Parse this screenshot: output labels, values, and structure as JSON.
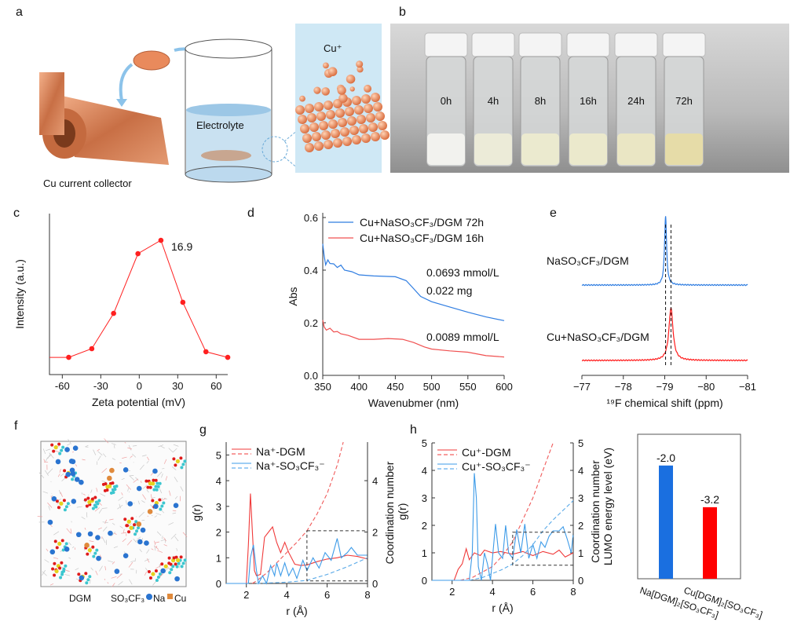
{
  "panel_letters": {
    "a": "a",
    "b": "b",
    "c": "c",
    "d": "d",
    "e": "e",
    "f": "f",
    "g": "g",
    "h": "h"
  },
  "panel_a": {
    "collector_label": "Cu current collector",
    "electrolyte_label": "Electrolyte",
    "ion_label": "Cu⁺",
    "colors": {
      "copper": "#d9865a",
      "electrolyte": "#bcd9ee",
      "crystal_bg": "#cfe8f5"
    }
  },
  "panel_b": {
    "vials": [
      "0h",
      "4h",
      "8h",
      "16h",
      "24h",
      "72h"
    ],
    "vial_liquid_colors": [
      "#f2f2ee",
      "#ecebd8",
      "#ebeacf",
      "#ebe9cc",
      "#eae6c4",
      "#e6dca8"
    ]
  },
  "panel_f": {
    "legend": {
      "dgm": "DGM",
      "anion": "SO₃CF₃",
      "na": "Na",
      "cu": "Cu"
    },
    "colors": {
      "na": "#2a74d0",
      "cu": "#e08a3c",
      "s": "#e6d21e",
      "o": "#e01b1b",
      "f": "#3cc6cf"
    }
  },
  "chart_data": [
    {
      "id": "c",
      "type": "line",
      "xlabel": "Zeta potential (mV)",
      "ylabel": "Intensity (a.u.)",
      "xlim": [
        -70,
        69
      ],
      "ylim": [
        0,
        1
      ],
      "xticks": [
        "-60",
        "-30",
        "0",
        "30",
        "60"
      ],
      "x": [
        -70,
        -55,
        -37,
        -20,
        -1,
        16.9,
        34,
        52,
        69
      ],
      "y": [
        0.107,
        0.107,
        0.161,
        0.38,
        0.751,
        0.834,
        0.449,
        0.142,
        0.107
      ],
      "color": "#ff2020",
      "annotation": "16.9",
      "grid": false
    },
    {
      "id": "d",
      "type": "line",
      "xlabel": "Wavenubmer (nm)",
      "ylabel": "Abs",
      "xlim": [
        350,
        600
      ],
      "ylim": [
        0,
        0.6
      ],
      "xticks": [
        "350",
        "400",
        "450",
        "500",
        "550",
        "600"
      ],
      "yticks": [
        "0.0",
        "0.2",
        "0.4",
        "0.6"
      ],
      "legend_position": "top-right",
      "series": [
        {
          "name": "Cu+NaSO₃CF₃/DGM 72h",
          "color": "#2f7de1",
          "x": [
            350,
            352,
            354,
            357,
            360,
            365,
            370,
            375,
            380,
            390,
            400,
            420,
            450,
            465,
            475,
            485,
            500,
            525,
            550,
            575,
            600
          ],
          "y": [
            0.5,
            0.45,
            0.42,
            0.435,
            0.425,
            0.42,
            0.41,
            0.415,
            0.4,
            0.39,
            0.382,
            0.378,
            0.375,
            0.36,
            0.33,
            0.3,
            0.28,
            0.26,
            0.24,
            0.222,
            0.208
          ]
        },
        {
          "name": "Cu+NaSO₃CF₃/DGM 16h",
          "color": "#f05050",
          "x": [
            350,
            352,
            355,
            360,
            365,
            370,
            375,
            385,
            400,
            420,
            440,
            460,
            475,
            490,
            500,
            525,
            550,
            575,
            600
          ],
          "y": [
            0.21,
            0.18,
            0.172,
            0.175,
            0.165,
            0.163,
            0.158,
            0.148,
            0.137,
            0.137,
            0.14,
            0.137,
            0.125,
            0.108,
            0.1,
            0.093,
            0.088,
            0.075,
            0.07
          ]
        }
      ],
      "annotations": [
        "0.0693 mmol/L",
        "0.022 mg",
        "0.0089 mmol/L"
      ],
      "grid": false
    },
    {
      "id": "e",
      "type": "line",
      "xlabel": "¹⁹F chemical shift (ppm)",
      "xlim": [
        -77,
        -81
      ],
      "xticks": [
        "−77",
        "−78",
        "−79",
        "−80",
        "−81"
      ],
      "stacked": true,
      "series": [
        {
          "name": "NaSO₃CF₃/DGM",
          "color": "#2f7de1",
          "peak_ppm": -79.02
        },
        {
          "name": "Cu+NaSO₃CF₃/DGM",
          "color": "#ff1a1a",
          "peak_ppm": -79.15
        }
      ],
      "reference_lines_ppm": [
        -79.02,
        -79.15
      ],
      "grid": false
    },
    {
      "id": "g",
      "type": "line",
      "xlabel": "r (Å)",
      "ylabel": "g(r)",
      "ylabel_right": "Coordination number",
      "xlim": [
        1,
        8
      ],
      "ylim": [
        0,
        5.5
      ],
      "xticks": [
        "2",
        "4",
        "6",
        "8"
      ],
      "yticks": [
        "0",
        "1",
        "2",
        "3",
        "4",
        "5"
      ],
      "yticks_right": [
        "0",
        "2",
        "4"
      ],
      "legend_position": "top-left",
      "legend": [
        "Na⁺-DGM",
        "Na⁺-SO₃CF₃⁻"
      ],
      "series": [
        {
          "name": "Na⁺-DGM",
          "kind": "g(r)",
          "color": "#f03a3a",
          "x": [
            1,
            2.0,
            2.1,
            2.2,
            2.3,
            2.4,
            2.5,
            2.7,
            2.9,
            3.1,
            3.3,
            3.5,
            3.7,
            3.9,
            4.1,
            4.4,
            4.7,
            5.0,
            5.5,
            6.0,
            6.5,
            7.0,
            7.5,
            8.0
          ],
          "y": [
            0,
            0,
            1.5,
            3.5,
            2.0,
            0.5,
            0.3,
            0.35,
            1.8,
            2.0,
            2.2,
            1.6,
            1.2,
            1.6,
            1.2,
            0.75,
            0.7,
            0.72,
            0.85,
            0.95,
            1.0,
            1.1,
            1.05,
            0.95
          ]
        },
        {
          "name": "Na⁺-DGM",
          "kind": "coordination",
          "color": "#f05a5a",
          "x": [
            2.3,
            2.5,
            3.0,
            3.5,
            4.0,
            4.5,
            5.0,
            5.5,
            6.0,
            6.5,
            6.8
          ],
          "y": [
            0,
            0.1,
            0.4,
            0.8,
            1.2,
            1.6,
            2.05,
            2.7,
            3.5,
            4.6,
            5.5
          ]
        },
        {
          "name": "Na⁺-SO₃CF₃⁻",
          "kind": "g(r)",
          "color": "#3d9be8",
          "x": [
            1,
            2.1,
            2.2,
            2.35,
            2.5,
            2.6,
            2.8,
            3.0,
            3.2,
            3.4,
            3.5,
            3.7,
            3.9,
            4.1,
            4.3,
            4.5,
            4.8,
            5.0,
            5.3,
            5.6,
            5.9,
            6.2,
            6.5,
            6.7,
            7.0,
            7.2,
            7.5,
            8.0
          ],
          "y": [
            0,
            0,
            1.0,
            1.5,
            0.5,
            0,
            0.3,
            0,
            0.7,
            0.3,
            0.8,
            0.3,
            0.8,
            0.3,
            0.6,
            0.2,
            0.9,
            0.5,
            1.0,
            0.6,
            1.2,
            0.9,
            1.75,
            1.0,
            1.2,
            1.4,
            1.1,
            1.1
          ]
        },
        {
          "name": "Na⁺-SO₃CF₃⁻",
          "kind": "coordination",
          "color": "#5aaae8",
          "x": [
            2.5,
            4.0,
            5.0,
            6.0,
            7.0,
            8.0
          ],
          "y": [
            0,
            0.05,
            0.12,
            0.35,
            0.65,
            1.0
          ]
        }
      ],
      "inset_box": {
        "x": [
          5,
          8
        ],
        "y": [
          0.1,
          2.05
        ]
      },
      "grid": false
    },
    {
      "id": "h",
      "type": "line",
      "xlabel": "r (Å)",
      "ylabel": "g(r)",
      "ylabel_right": "Coordination number",
      "xlim": [
        1,
        8
      ],
      "ylim": [
        0,
        5
      ],
      "xticks": [
        "2",
        "4",
        "6",
        "8"
      ],
      "yticks": [
        "0",
        "1",
        "2",
        "3",
        "4",
        "5"
      ],
      "yticks_right": [
        "0",
        "1",
        "2",
        "3",
        "4",
        "5"
      ],
      "legend_position": "top-left",
      "legend": [
        "Cu⁺-DGM",
        "Cu⁺-SO₃CF₃⁻"
      ],
      "series": [
        {
          "name": "Cu⁺-DGM",
          "kind": "g(r)",
          "color": "#f03a3a",
          "x": [
            1,
            2.1,
            2.3,
            2.5,
            2.7,
            2.85,
            3.1,
            3.4,
            3.6,
            4.0,
            4.4,
            4.7,
            5.0,
            5.5,
            6.0,
            6.5,
            7.0,
            7.3,
            7.6,
            8.0
          ],
          "y": [
            0,
            0,
            0.4,
            0.6,
            1.15,
            0.75,
            1.0,
            0.9,
            1.1,
            1.0,
            1.05,
            1.0,
            0.95,
            1.05,
            0.9,
            1.05,
            0.95,
            1.1,
            0.85,
            1.0
          ]
        },
        {
          "name": "Cu⁺-DGM",
          "kind": "coordination",
          "color": "#f05a5a",
          "x": [
            2.4,
            3.0,
            4.0,
            4.5,
            5.0,
            5.5,
            6.0,
            6.5,
            7.0
          ],
          "y": [
            0,
            0.1,
            0.5,
            0.9,
            1.4,
            2.2,
            3.0,
            4.0,
            5.0
          ]
        },
        {
          "name": "Cu⁺-SO₃CF₃⁻",
          "kind": "g(r)",
          "color": "#3d9be8",
          "x": [
            1,
            2.85,
            3.0,
            3.1,
            3.2,
            3.3,
            3.45,
            3.6,
            3.75,
            3.9,
            4.0,
            4.15,
            4.3,
            4.5,
            4.65,
            4.8,
            5.0,
            5.2,
            5.4,
            5.6,
            5.8,
            6.0,
            6.2,
            6.4,
            6.6,
            6.8,
            7.0,
            7.3,
            7.5,
            7.7,
            7.9,
            8.0
          ],
          "y": [
            0,
            0,
            1.0,
            3.9,
            3.0,
            0.5,
            0,
            1.0,
            0.6,
            0,
            0.8,
            2.05,
            1.0,
            0.8,
            2.0,
            1.0,
            0.8,
            1.85,
            1.0,
            2.05,
            0.8,
            1.3,
            0.8,
            1.4,
            1.2,
            1.6,
            1.8,
            1.8,
            1.95,
            1.5,
            1.0,
            1.7
          ]
        },
        {
          "name": "Cu⁺-SO₃CF₃⁻",
          "kind": "coordination",
          "color": "#5aaae8",
          "x": [
            2.85,
            3.5,
            4.0,
            4.5,
            5.0,
            5.5,
            6.0,
            6.5,
            7.0,
            8.0
          ],
          "y": [
            0,
            0.1,
            0.25,
            0.4,
            0.6,
            0.9,
            1.3,
            1.8,
            2.2,
            2.9
          ]
        }
      ],
      "inset_box": {
        "x": [
          5,
          8
        ],
        "y": [
          0.55,
          1.75
        ]
      },
      "grid": false
    },
    {
      "id": "lumo",
      "type": "bar",
      "ylabel": "LUMO energy level (eV)",
      "categories": [
        "Na[DGM]₂[SO₃CF₃]",
        "Cu[DGM]₂[SO₃CF₃]"
      ],
      "values": [
        -2.0,
        -3.2
      ],
      "value_labels": [
        "-2.0",
        "-3.2"
      ],
      "colors": [
        "#1a6fe0",
        "#ff0000"
      ],
      "ylim": [
        -5.26,
        -1.1
      ],
      "grid": false
    }
  ]
}
